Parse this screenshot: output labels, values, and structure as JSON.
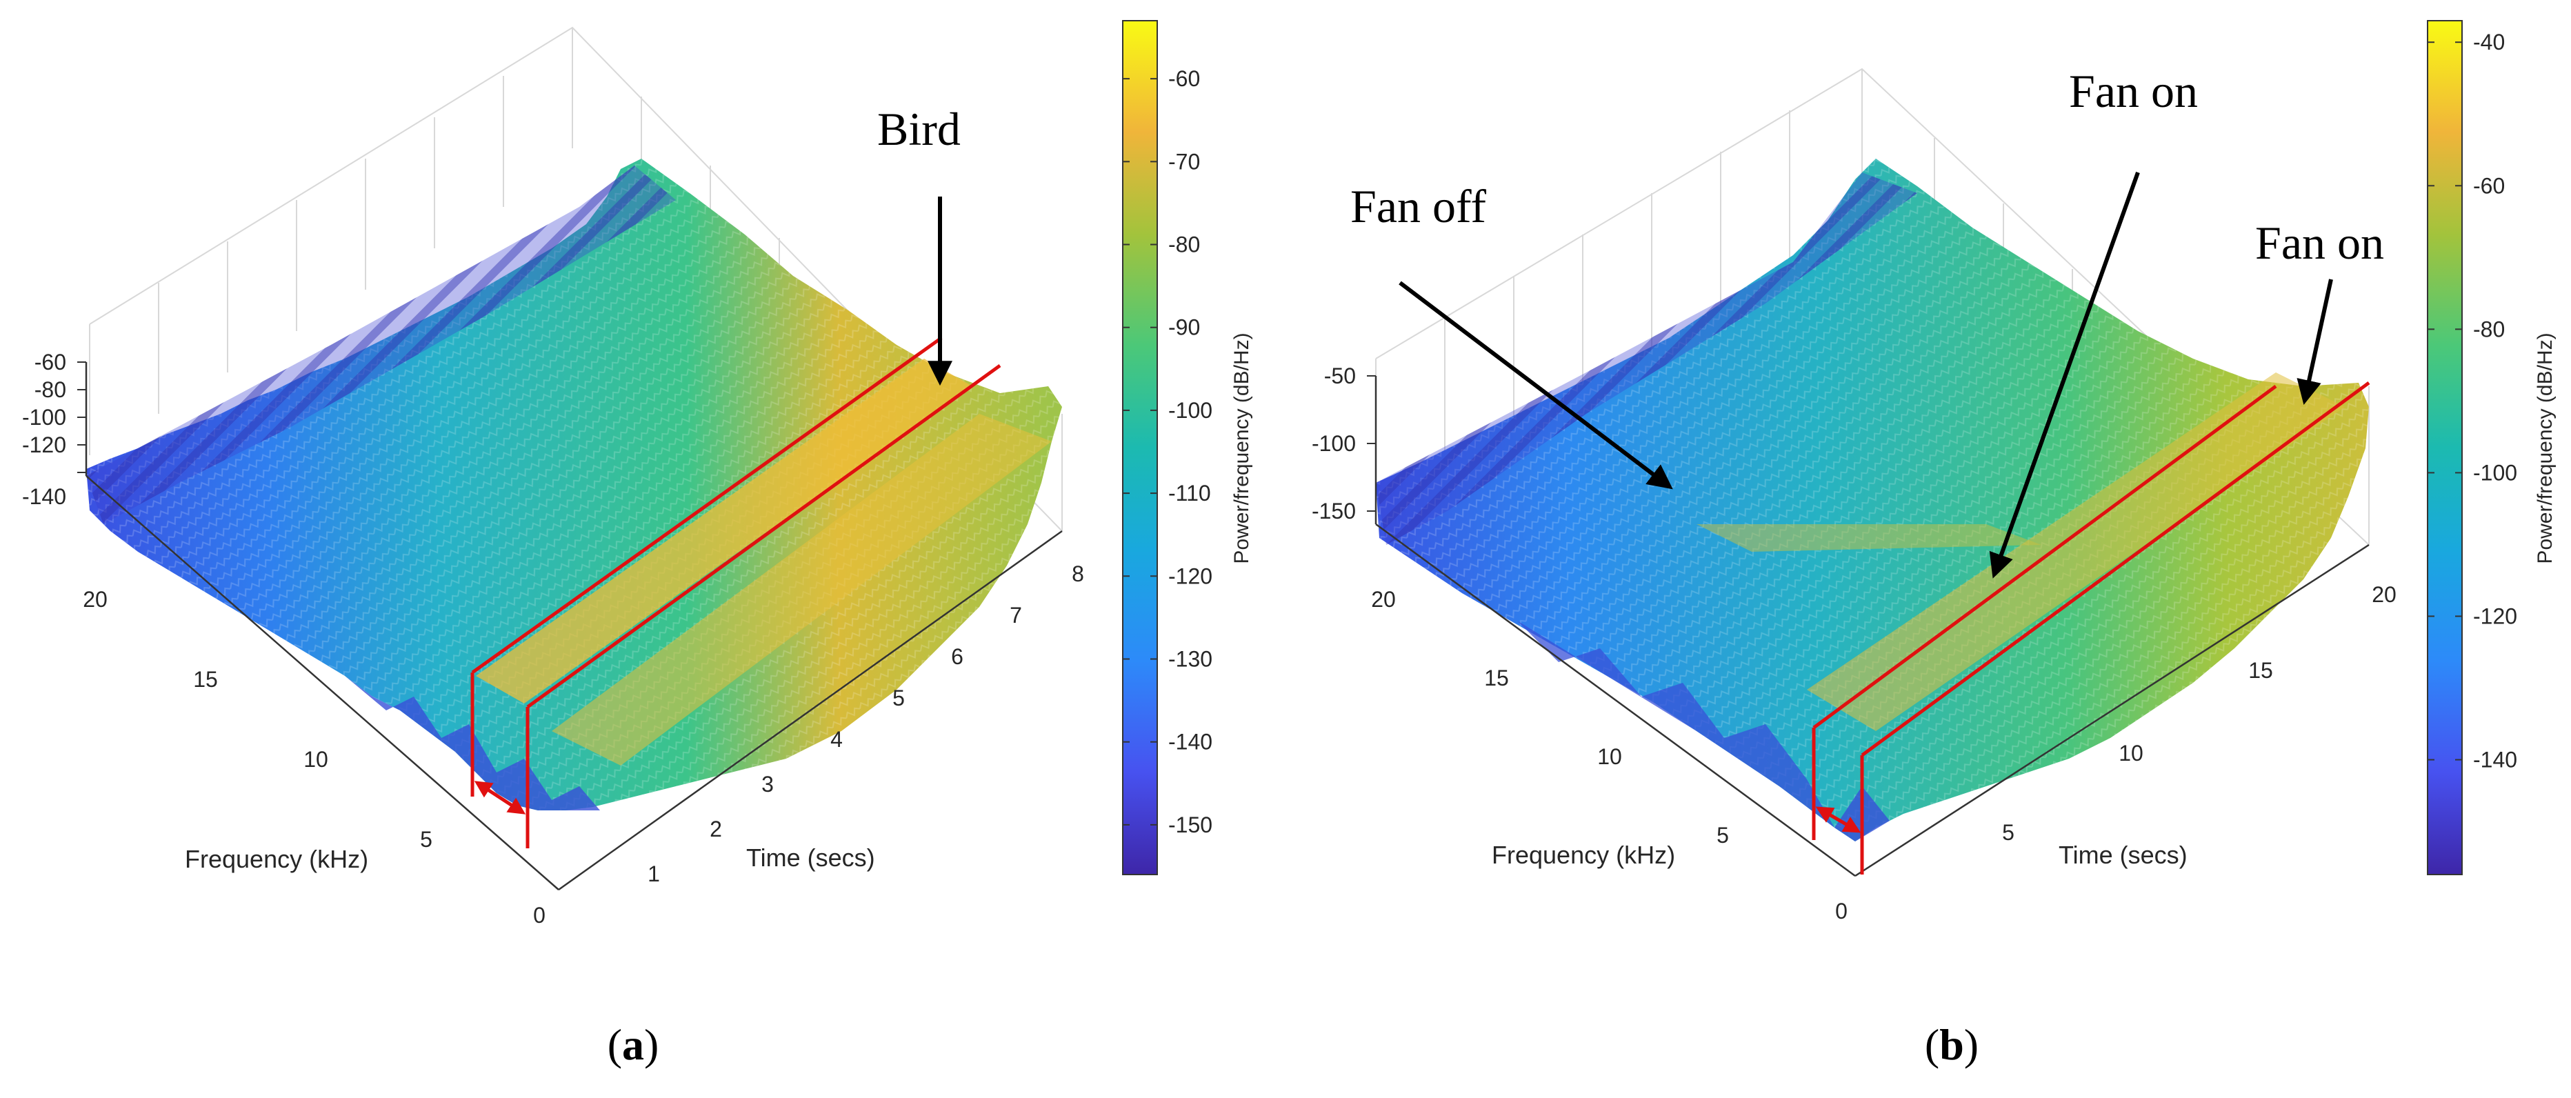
{
  "chart_data": [
    {
      "type": "surface3d",
      "panel_label": "a",
      "title": "",
      "xlabel": "Time (secs)",
      "ylabel": "Frequency (kHz)",
      "zlabel": "",
      "time_ticks": [
        "0",
        "1",
        "2",
        "3",
        "4",
        "5",
        "6",
        "7",
        "8"
      ],
      "freq_ticks": [
        "5",
        "10",
        "15",
        "20"
      ],
      "z_ticks": [
        "-60",
        "-80",
        "-100",
        "-120",
        "-140"
      ],
      "colorbar": {
        "label": "Power/frequency (dB/Hz)",
        "range": [
          -156,
          -53
        ],
        "ticks": [
          "-60",
          "-70",
          "-80",
          "-90",
          "-100",
          "-110",
          "-120",
          "-130",
          "-140",
          "-150"
        ]
      },
      "annotations": [
        {
          "text": "Bird"
        }
      ]
    },
    {
      "type": "surface3d",
      "panel_label": "b",
      "title": "",
      "xlabel": "Time (secs)",
      "ylabel": "Frequency (kHz)",
      "zlabel": "",
      "time_ticks": [
        "0",
        "5",
        "10",
        "15",
        "20"
      ],
      "freq_ticks": [
        "5",
        "10",
        "15",
        "20"
      ],
      "z_ticks": [
        "-50",
        "-100",
        "-150"
      ],
      "colorbar": {
        "label": "Power/frequency (dB/Hz)",
        "range": [
          -156,
          -37
        ],
        "ticks": [
          "-40",
          "-60",
          "-80",
          "-100",
          "-120",
          "-140"
        ]
      },
      "annotations": [
        {
          "text": "Fan off"
        },
        {
          "text": "Fan on"
        },
        {
          "text": "Fan on"
        }
      ]
    }
  ],
  "colors": {
    "surface_low": "#3e26a8",
    "surface_mid": "#1fb2b8",
    "surface_high": "#f9e030",
    "highlight": "#e01010",
    "arrow": "#000000"
  }
}
